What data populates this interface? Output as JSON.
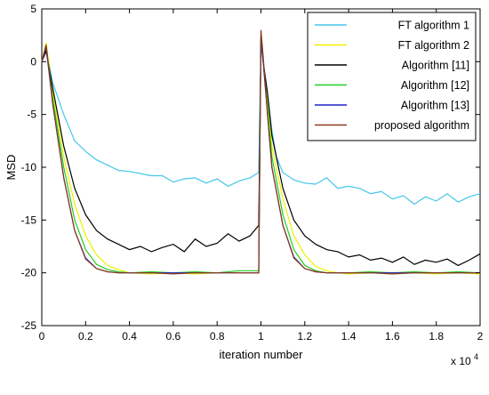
{
  "chart_data": {
    "type": "line",
    "title": "",
    "xlabel": "iteration number",
    "ylabel": "MSD",
    "x_multiplier_label": "x 10",
    "x_multiplier_exp": "4",
    "xlim": [
      0,
      2
    ],
    "ylim": [
      -25,
      5
    ],
    "xticks": [
      0,
      0.2,
      0.4,
      0.6,
      0.8,
      1,
      1.2,
      1.4,
      1.6,
      1.8,
      2
    ],
    "xtick_labels": [
      "0",
      "0.2",
      "0.4",
      "0.6",
      "0.8",
      "1",
      "1.2",
      "1.4",
      "1.6",
      "1.8",
      "2"
    ],
    "yticks": [
      5,
      0,
      -5,
      -10,
      -15,
      -20,
      -25
    ],
    "ytick_labels": [
      "5",
      "0",
      "-5",
      "-10",
      "-15",
      "-20",
      "-25"
    ],
    "grid": false,
    "legend_position": "top-right",
    "series": [
      {
        "name": "FT algorithm 1",
        "color": "#44c8e8",
        "x": [
          0,
          0.02,
          0.05,
          0.1,
          0.15,
          0.2,
          0.25,
          0.3,
          0.35,
          0.4,
          0.45,
          0.5,
          0.55,
          0.6,
          0.65,
          0.7,
          0.75,
          0.8,
          0.85,
          0.9,
          0.95,
          0.99,
          1.0,
          1.01,
          1.03,
          1.05,
          1.07,
          1.1,
          1.15,
          1.2,
          1.25,
          1.3,
          1.35,
          1.4,
          1.45,
          1.5,
          1.55,
          1.6,
          1.65,
          1.7,
          1.75,
          1.8,
          1.85,
          1.9,
          1.95,
          2.0
        ],
        "y": [
          0,
          1.2,
          -2,
          -5,
          -7.5,
          -8.5,
          -9.3,
          -9.8,
          -10.3,
          -10.4,
          -10.6,
          -10.8,
          -10.8,
          -11.4,
          -11.1,
          -11.0,
          -11.5,
          -11.1,
          -11.8,
          -11.3,
          -11.0,
          -10.5,
          1.5,
          0,
          -3,
          -6.5,
          -9,
          -10.5,
          -11.2,
          -11.5,
          -11.6,
          -11.0,
          -12.0,
          -11.8,
          -12.0,
          -12.5,
          -12.3,
          -13.0,
          -12.7,
          -13.5,
          -12.8,
          -13.2,
          -12.5,
          -13.3,
          -12.8,
          -12.5
        ]
      },
      {
        "name": "FT algorithm 2",
        "color": "#f0f000",
        "x": [
          0,
          0.02,
          0.05,
          0.1,
          0.15,
          0.2,
          0.25,
          0.3,
          0.35,
          0.4,
          0.5,
          0.6,
          0.7,
          0.8,
          0.9,
          0.99,
          1.0,
          1.01,
          1.03,
          1.05,
          1.1,
          1.15,
          1.2,
          1.25,
          1.3,
          1.35,
          1.4,
          1.5,
          1.6,
          1.7,
          1.8,
          1.9,
          2.0
        ],
        "y": [
          0,
          1.8,
          -3,
          -9,
          -13.5,
          -16.5,
          -18.3,
          -19.3,
          -19.7,
          -20.0,
          -20.1,
          -20.0,
          -20.1,
          -20.0,
          -20.0,
          -20.0,
          2.0,
          0,
          -4,
          -8,
          -13,
          -16.5,
          -18.3,
          -19.4,
          -19.8,
          -20.0,
          -20.1,
          -20.0,
          -20.1,
          -20.0,
          -20.1,
          -20.0,
          -20.1
        ]
      },
      {
        "name": "Algorithm [11]",
        "color": "#000000",
        "x": [
          0,
          0.02,
          0.05,
          0.1,
          0.15,
          0.2,
          0.25,
          0.3,
          0.35,
          0.4,
          0.45,
          0.5,
          0.55,
          0.6,
          0.65,
          0.7,
          0.75,
          0.8,
          0.85,
          0.9,
          0.95,
          0.99,
          1.0,
          1.01,
          1.03,
          1.05,
          1.1,
          1.15,
          1.2,
          1.25,
          1.3,
          1.35,
          1.4,
          1.45,
          1.5,
          1.55,
          1.6,
          1.65,
          1.7,
          1.75,
          1.8,
          1.85,
          1.9,
          1.95,
          2.0
        ],
        "y": [
          0,
          1.0,
          -2.5,
          -8,
          -12,
          -14.5,
          -16,
          -16.8,
          -17.3,
          -17.8,
          -17.5,
          -18.0,
          -17.6,
          -17.3,
          -18.0,
          -16.8,
          -17.5,
          -17.2,
          -16.3,
          -17.0,
          -16.5,
          -15.5,
          2.0,
          0,
          -3,
          -7,
          -12,
          -15,
          -16.5,
          -17.3,
          -17.8,
          -18.0,
          -18.5,
          -18.3,
          -18.8,
          -18.6,
          -19.0,
          -18.5,
          -19.2,
          -18.8,
          -19.0,
          -18.7,
          -19.3,
          -18.8,
          -18.2
        ]
      },
      {
        "name": "Algorithm [12]",
        "color": "#22cc22",
        "x": [
          0,
          0.02,
          0.05,
          0.1,
          0.15,
          0.2,
          0.25,
          0.3,
          0.35,
          0.4,
          0.5,
          0.6,
          0.7,
          0.8,
          0.9,
          0.99,
          1.0,
          1.01,
          1.03,
          1.05,
          1.1,
          1.15,
          1.2,
          1.25,
          1.3,
          1.4,
          1.5,
          1.6,
          1.7,
          1.8,
          1.9,
          2.0
        ],
        "y": [
          0,
          1.5,
          -3.5,
          -10,
          -15,
          -17.8,
          -19.2,
          -19.7,
          -19.9,
          -20.0,
          -19.9,
          -20.0,
          -19.9,
          -20.0,
          -19.8,
          -19.8,
          2.3,
          0,
          -4.5,
          -9,
          -14.5,
          -17.8,
          -19.3,
          -19.8,
          -20.0,
          -20.0,
          -19.9,
          -20.0,
          -19.9,
          -20.0,
          -19.9,
          -20.0
        ]
      },
      {
        "name": "Algorithm [13]",
        "color": "#2222cc",
        "x": [
          0,
          0.02,
          0.05,
          0.1,
          0.15,
          0.2,
          0.25,
          0.3,
          0.35,
          0.4,
          0.5,
          0.6,
          0.7,
          0.8,
          0.9,
          0.99,
          1.0,
          1.01,
          1.03,
          1.05,
          1.1,
          1.15,
          1.2,
          1.25,
          1.3,
          1.4,
          1.5,
          1.6,
          1.7,
          1.8,
          1.9,
          2.0
        ],
        "y": [
          0,
          1.3,
          -4,
          -11,
          -16,
          -18.6,
          -19.6,
          -19.9,
          -20.0,
          -20.0,
          -20.0,
          -20.0,
          -20.0,
          -20.0,
          -20.0,
          -20.0,
          2.6,
          0,
          -5,
          -10,
          -15.5,
          -18.5,
          -19.6,
          -19.9,
          -20.0,
          -20.0,
          -20.0,
          -20.0,
          -20.0,
          -20.0,
          -20.0,
          -20.0
        ]
      },
      {
        "name": "proposed algorithm",
        "color": "#8b3a1a",
        "x": [
          0,
          0.02,
          0.05,
          0.1,
          0.15,
          0.2,
          0.25,
          0.3,
          0.35,
          0.4,
          0.5,
          0.6,
          0.7,
          0.8,
          0.9,
          0.99,
          1.0,
          1.01,
          1.03,
          1.05,
          1.1,
          1.15,
          1.2,
          1.25,
          1.3,
          1.4,
          1.5,
          1.6,
          1.7,
          1.8,
          1.9,
          2.0
        ],
        "y": [
          0,
          1.6,
          -4,
          -11,
          -16,
          -18.7,
          -19.6,
          -19.9,
          -20.0,
          -20.0,
          -20.0,
          -20.1,
          -20.0,
          -20.0,
          -20.0,
          -20.0,
          3.0,
          0.5,
          -5,
          -10,
          -15.5,
          -18.6,
          -19.6,
          -19.9,
          -20.0,
          -20.0,
          -20.0,
          -20.1,
          -20.0,
          -20.0,
          -20.0,
          -20.0
        ]
      }
    ]
  }
}
